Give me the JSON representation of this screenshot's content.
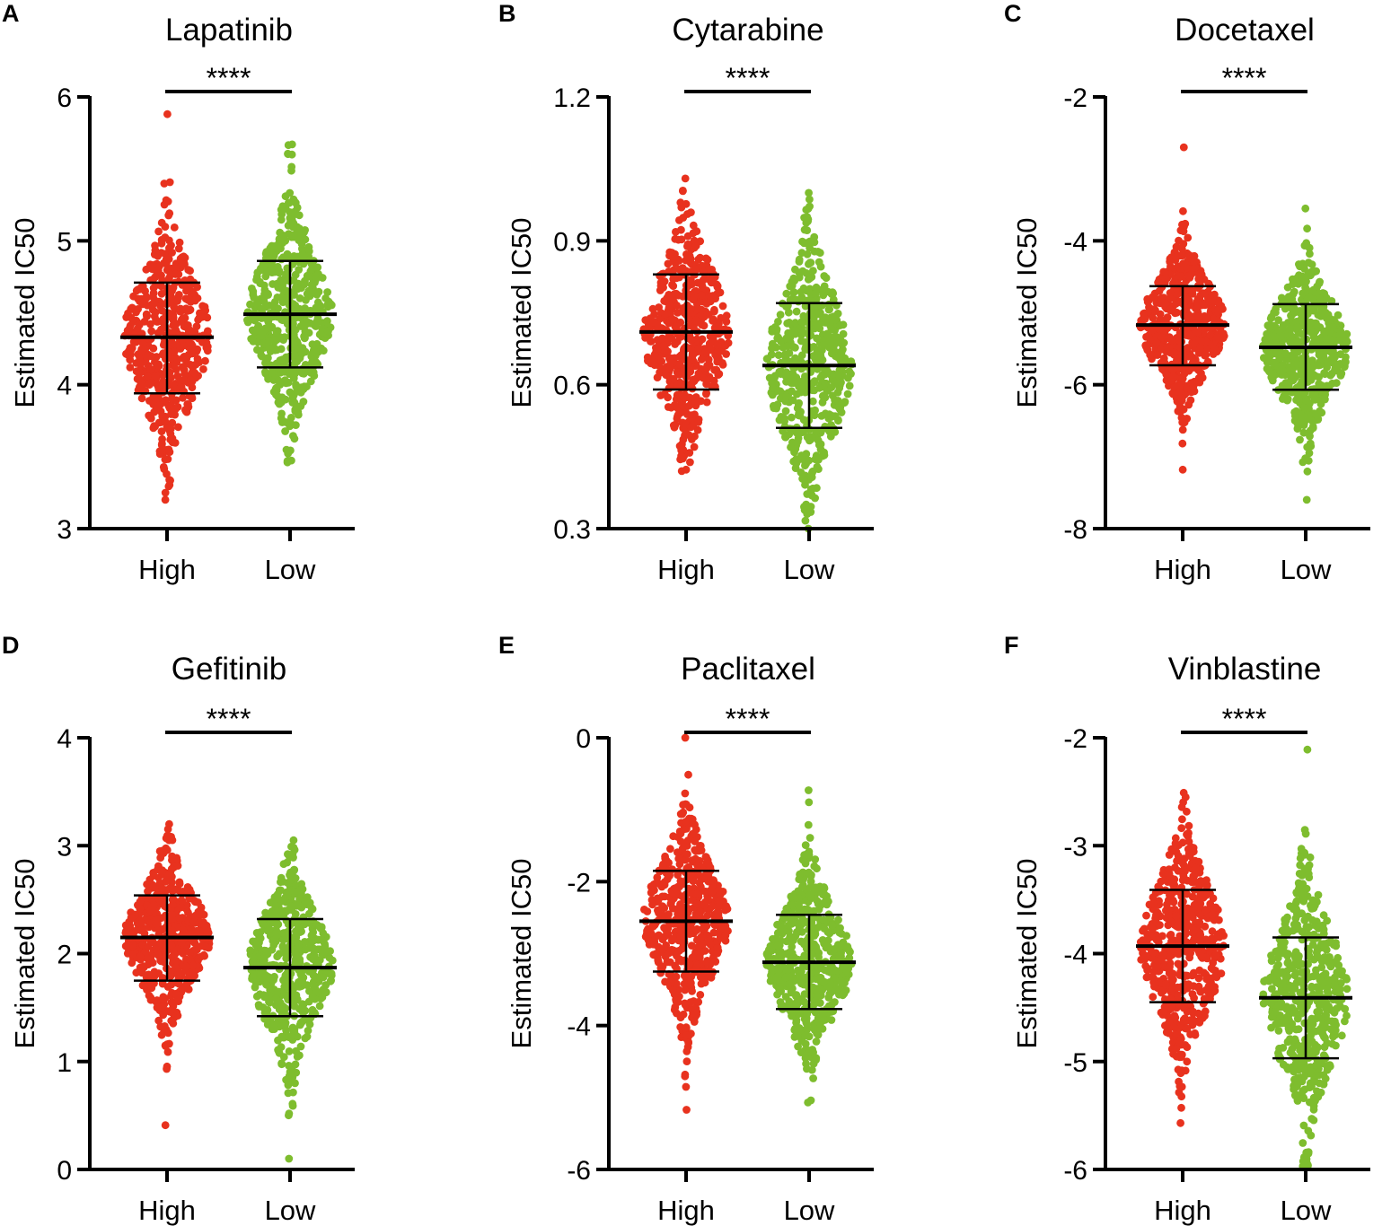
{
  "chart_data": [
    {
      "panel": "A",
      "type": "scatter",
      "title": "Lapatinib",
      "ylabel": "Estimated IC50",
      "xlabel": "",
      "categories": [
        "High",
        "Low"
      ],
      "ylim": [
        3,
        6
      ],
      "yticks": [
        "3",
        "4",
        "5",
        "6"
      ],
      "significance": "****",
      "colors": [
        "#e8321e",
        "#7ebd2e"
      ],
      "series": [
        {
          "name": "High",
          "mean": 4.33,
          "sd_low": 3.94,
          "sd_high": 4.71,
          "min": 3.2,
          "max": 5.88
        },
        {
          "name": "Low",
          "mean": 4.49,
          "sd_low": 4.12,
          "sd_high": 4.86,
          "min": 3.46,
          "max": 5.67
        }
      ]
    },
    {
      "panel": "B",
      "type": "scatter",
      "title": "Cytarabine",
      "ylabel": "Estimated IC50",
      "xlabel": "",
      "categories": [
        "High",
        "Low"
      ],
      "ylim": [
        0.3,
        1.2
      ],
      "yticks": [
        "0.3",
        "0.6",
        "0.9",
        "1.2"
      ],
      "significance": "****",
      "colors": [
        "#e8321e",
        "#7ebd2e"
      ],
      "series": [
        {
          "name": "High",
          "mean": 0.71,
          "sd_low": 0.59,
          "sd_high": 0.83,
          "min": 0.42,
          "max": 1.03
        },
        {
          "name": "Low",
          "mean": 0.64,
          "sd_low": 0.51,
          "sd_high": 0.77,
          "min": 0.3,
          "max": 1.0
        }
      ]
    },
    {
      "panel": "C",
      "type": "scatter",
      "title": "Docetaxel",
      "ylabel": "Estimated IC50",
      "xlabel": "",
      "categories": [
        "High",
        "Low"
      ],
      "ylim": [
        -8,
        -2
      ],
      "yticks": [
        "-8",
        "-6",
        "-4",
        "-2"
      ],
      "significance": "****",
      "colors": [
        "#e8321e",
        "#7ebd2e"
      ],
      "series": [
        {
          "name": "High",
          "mean": -5.17,
          "sd_low": -5.73,
          "sd_high": -4.63,
          "min": -7.18,
          "max": -2.7
        },
        {
          "name": "Low",
          "mean": -5.48,
          "sd_low": -6.07,
          "sd_high": -4.88,
          "min": -7.6,
          "max": -3.55
        }
      ]
    },
    {
      "panel": "D",
      "type": "scatter",
      "title": "Gefitinib",
      "ylabel": "Estimated IC50",
      "xlabel": "",
      "categories": [
        "High",
        "Low"
      ],
      "ylim": [
        0,
        4
      ],
      "yticks": [
        "0",
        "1",
        "2",
        "3",
        "4"
      ],
      "significance": "****",
      "colors": [
        "#e8321e",
        "#7ebd2e"
      ],
      "series": [
        {
          "name": "High",
          "mean": 2.15,
          "sd_low": 1.75,
          "sd_high": 2.54,
          "min": 0.41,
          "max": 3.2
        },
        {
          "name": "Low",
          "mean": 1.87,
          "sd_low": 1.42,
          "sd_high": 2.32,
          "min": 0.1,
          "max": 3.05
        }
      ]
    },
    {
      "panel": "E",
      "type": "scatter",
      "title": "Paclitaxel",
      "ylabel": "Estimated IC50",
      "xlabel": "",
      "categories": [
        "High",
        "Low"
      ],
      "ylim": [
        -6,
        0
      ],
      "yticks": [
        "-6",
        "-4",
        "-2",
        "0"
      ],
      "significance": "****",
      "colors": [
        "#e8321e",
        "#7ebd2e"
      ],
      "series": [
        {
          "name": "High",
          "mean": -2.55,
          "sd_low": -3.25,
          "sd_high": -1.85,
          "min": -5.17,
          "max": 0.0
        },
        {
          "name": "Low",
          "mean": -3.12,
          "sd_low": -3.77,
          "sd_high": -2.46,
          "min": -5.07,
          "max": -0.73
        }
      ]
    },
    {
      "panel": "F",
      "type": "scatter",
      "title": "Vinblastine",
      "ylabel": "Estimated IC50",
      "xlabel": "",
      "categories": [
        "High",
        "Low"
      ],
      "ylim": [
        -6,
        -2
      ],
      "yticks": [
        "-6",
        "-5",
        "-4",
        "-3",
        "-2"
      ],
      "significance": "****",
      "colors": [
        "#e8321e",
        "#7ebd2e"
      ],
      "series": [
        {
          "name": "High",
          "mean": -3.93,
          "sd_low": -4.45,
          "sd_high": -3.41,
          "min": -5.57,
          "max": -2.51
        },
        {
          "name": "Low",
          "mean": -4.41,
          "sd_low": -4.97,
          "sd_high": -3.85,
          "min": -5.97,
          "max": -2.11
        }
      ]
    }
  ]
}
